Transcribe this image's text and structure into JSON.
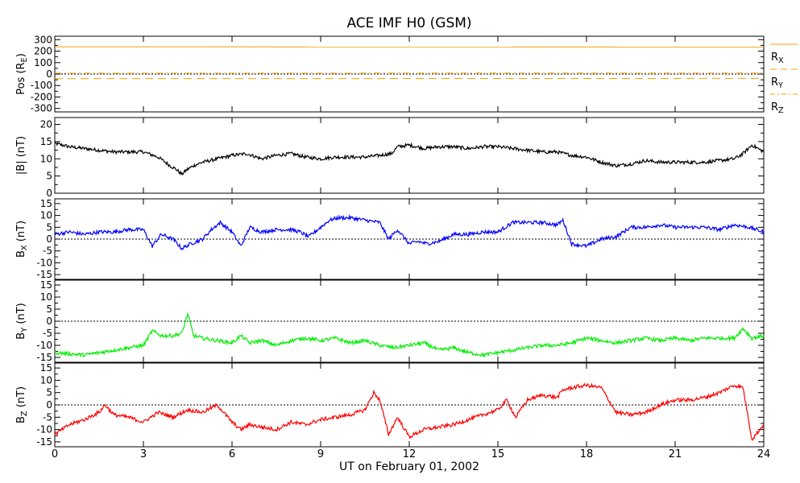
{
  "chart_data": {
    "type": "line",
    "title": "ACE IMF H0 (GSM)",
    "xlabel": "UT on February 01, 2002",
    "xlim": [
      0,
      24
    ],
    "xticks": [
      0,
      3,
      6,
      9,
      12,
      15,
      18,
      21,
      24
    ],
    "xtick_labels": [
      "0",
      "3",
      "6",
      "9",
      "12",
      "15",
      "18",
      "21",
      "24"
    ],
    "panels": [
      {
        "ylabel": "Pos (R_E)",
        "ylim": [
          -330,
          330
        ],
        "yticks": [
          300,
          200,
          100,
          0,
          -100,
          -200,
          -300
        ],
        "zero_line": true,
        "legend": [
          "R_X",
          "R_Y",
          "R_Z"
        ],
        "series": [
          {
            "name": "R_X",
            "color": "#f5a000",
            "style": "solid",
            "x": [
              0,
              24
            ],
            "y": [
              238,
              236
            ]
          },
          {
            "name": "R_Y",
            "color": "#f5a000",
            "style": "dashed",
            "x": [
              0,
              24
            ],
            "y": [
              -40,
              -38
            ]
          },
          {
            "name": "R_Z",
            "color": "#f5a000",
            "style": "dashdot",
            "x": [
              0,
              24
            ],
            "y": [
              8,
              9
            ]
          }
        ]
      },
      {
        "ylabel": "|B| (nT)",
        "ylim": [
          0,
          22
        ],
        "yticks": [
          0,
          5,
          10,
          15,
          20
        ],
        "zero_line": false,
        "series": [
          {
            "name": "",
            "color": "#000000",
            "style": "solid",
            "x": [
              0,
              0.5,
              1,
              1.5,
              2,
              2.5,
              3,
              3.5,
              3.9,
              4.1,
              4.3,
              4.5,
              4.7,
              5,
              5.5,
              6,
              6.5,
              7,
              7.5,
              8,
              8.5,
              9,
              9.5,
              10,
              10.5,
              11,
              11.4,
              11.6,
              12,
              12.5,
              13,
              13.5,
              14,
              14.5,
              15,
              15.5,
              16,
              16.5,
              17,
              17.5,
              18,
              18.5,
              19,
              19.5,
              20,
              20.5,
              21,
              21.5,
              22,
              22.5,
              23,
              23.3,
              23.6,
              24
            ],
            "y": [
              14.5,
              13.5,
              13,
              12.5,
              12,
              12,
              12,
              10.5,
              8,
              7,
              5.5,
              7,
              8,
              9,
              10,
              11,
              11.5,
              10,
              11,
              11.5,
              10.5,
              10,
              10.5,
              10.5,
              10.5,
              11,
              11.5,
              13.5,
              14,
              13,
              13.5,
              13.5,
              13,
              13.5,
              13.5,
              13,
              12.5,
              12,
              12,
              11,
              10.5,
              9,
              8,
              8.5,
              9.5,
              9,
              9,
              9,
              9,
              9.5,
              10,
              11.5,
              14,
              12
            ]
          }
        ]
      },
      {
        "ylabel": "B_X (nT)",
        "ylim": [
          -17,
          17
        ],
        "yticks": [
          15,
          10,
          5,
          0,
          -5,
          -10,
          -15
        ],
        "zero_line": true,
        "series": [
          {
            "name": "",
            "color": "#0000ff",
            "style": "solid",
            "x": [
              0,
              0.5,
              1,
              1.5,
              2,
              2.5,
              3,
              3.3,
              3.6,
              4,
              4.3,
              4.6,
              5,
              5.3,
              5.6,
              6,
              6.3,
              6.6,
              7,
              7.5,
              8,
              8.3,
              8.6,
              9,
              9.3,
              9.6,
              10,
              10.5,
              11,
              11.3,
              11.6,
              12,
              12.3,
              12.6,
              13,
              13.5,
              14,
              14.5,
              15,
              15.5,
              16,
              16.5,
              17,
              17.2,
              17.5,
              18,
              18.5,
              19,
              19.5,
              20,
              20.5,
              21,
              21.5,
              22,
              22.5,
              23,
              23.5,
              24
            ],
            "y": [
              2,
              3,
              2,
              3,
              3,
              4,
              4,
              -3,
              2,
              0,
              -4,
              -2,
              0,
              4,
              7,
              3,
              -3,
              5,
              3,
              4,
              4,
              3,
              1,
              5,
              8,
              9,
              9,
              8,
              7,
              0,
              4,
              -2,
              -1,
              -2,
              -1,
              2,
              2,
              3,
              3,
              7,
              7,
              7,
              6,
              8,
              -2,
              -3,
              0,
              1,
              5,
              5,
              6,
              5,
              5,
              5,
              4,
              6,
              5,
              3
            ]
          }
        ]
      },
      {
        "ylabel": "B_Y (nT)",
        "ylim": [
          -17,
          17
        ],
        "yticks": [
          15,
          10,
          5,
          0,
          -5,
          -10,
          -15
        ],
        "zero_line": true,
        "series": [
          {
            "name": "",
            "color": "#00ee00",
            "style": "solid",
            "x": [
              0,
              0.5,
              1,
              1.5,
              2,
              2.5,
              3,
              3.3,
              3.6,
              4,
              4.3,
              4.5,
              4.7,
              5,
              5.5,
              6,
              6.3,
              6.6,
              7,
              7.5,
              8,
              8.5,
              9,
              9.5,
              10,
              10.5,
              11,
              11.5,
              12,
              12.5,
              13,
              13.5,
              14,
              14.5,
              15,
              15.5,
              16,
              16.5,
              17,
              17.5,
              18,
              18.5,
              19,
              19.5,
              20,
              20.5,
              21,
              21.5,
              22,
              22.5,
              23,
              23.3,
              23.6,
              24
            ],
            "y": [
              -13,
              -13.5,
              -14,
              -13,
              -12,
              -11,
              -10,
              -4,
              -6,
              -6,
              -5,
              3,
              -6,
              -7,
              -8,
              -9,
              -6,
              -9,
              -8,
              -10,
              -8,
              -7,
              -8,
              -7,
              -9,
              -8,
              -10,
              -11,
              -10,
              -9,
              -12,
              -11,
              -13,
              -14,
              -13,
              -12,
              -11,
              -10,
              -10,
              -9,
              -7,
              -8,
              -9,
              -8,
              -7,
              -8,
              -7,
              -8,
              -7,
              -7,
              -7,
              -3,
              -7,
              -6
            ]
          }
        ]
      },
      {
        "ylabel": "B_Z (nT)",
        "ylim": [
          -17,
          17
        ],
        "yticks": [
          15,
          10,
          5,
          0,
          -5,
          -10,
          -15
        ],
        "zero_line": true,
        "series": [
          {
            "name": "",
            "color": "#ff0000",
            "style": "solid",
            "x": [
              0,
              0.5,
              1,
              1.5,
              1.7,
              2,
              2.5,
              3,
              3.5,
              4,
              4.5,
              5,
              5.5,
              6,
              6.3,
              6.6,
              7,
              7.5,
              8,
              8.5,
              9,
              9.5,
              10,
              10.5,
              10.8,
              11,
              11.3,
              11.6,
              12,
              12.5,
              13,
              13.5,
              14,
              14.5,
              15,
              15.3,
              15.6,
              16,
              16.5,
              17,
              17.2,
              17.5,
              18,
              18.5,
              19,
              19.5,
              20,
              20.5,
              21,
              21.5,
              22,
              22.5,
              23,
              23.3,
              23.6,
              24
            ],
            "y": [
              -12,
              -8,
              -6,
              -3,
              0,
              -4,
              -5,
              -7,
              -3,
              -5,
              -2,
              -3,
              0,
              -7,
              -10,
              -8,
              -9,
              -10,
              -7,
              -8,
              -6,
              -5,
              -4,
              -2,
              5,
              2,
              -12,
              -5,
              -13,
              -10,
              -9,
              -8,
              -6,
              -4,
              -2,
              2,
              -5,
              2,
              4,
              3,
              6,
              7,
              8,
              7,
              -3,
              -4,
              -3,
              0,
              2,
              2,
              3,
              5,
              8,
              7,
              -14,
              -8
            ]
          }
        ]
      }
    ]
  }
}
